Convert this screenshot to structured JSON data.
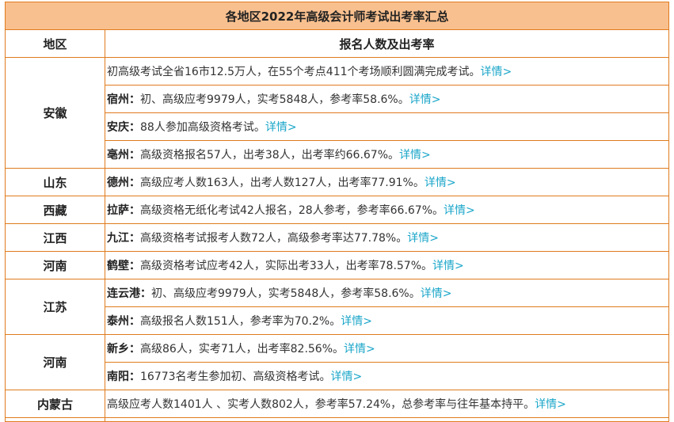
{
  "table": {
    "title": "各地区2022年高级会计师考试出考率汇总",
    "headers": {
      "region": "地区",
      "info": "报名人数及出考率"
    },
    "link_label": "详情>",
    "colors": {
      "border": "#e07b1e",
      "title_bg": "#f9c08f",
      "link": "#1aa6c9"
    },
    "groups": [
      {
        "region": "安徽",
        "rows": [
          {
            "city": "",
            "text": "初高级考试全省16市12.5万人，在55个考点411个考场顺利圆满完成考试。",
            "link": "详情>"
          },
          {
            "city": "宿州：",
            "text": "初、高级应考9979人，实考5848人，参考率58.6%。",
            "link": "详情>"
          },
          {
            "city": "安庆：",
            "text": "88人参加高级资格考试。",
            "link": "详情>"
          },
          {
            "city": "亳州：",
            "text": "高级资格报名57人，出考38人，出考率约66.67%。",
            "link": "详情>"
          }
        ]
      },
      {
        "region": "山东",
        "rows": [
          {
            "city": "德州：",
            "text": "高级应考人数163人，出考人数127人，出考率77.91%。",
            "link": "详情>"
          }
        ]
      },
      {
        "region": "西藏",
        "rows": [
          {
            "city": "拉萨：",
            "text": "高级资格无纸化考试42人报名，28人参考，参考率66.67%。",
            "link": "详情>"
          }
        ]
      },
      {
        "region": "江西",
        "rows": [
          {
            "city": "九江：",
            "text": "高级资格考试报考人数72人，高级参考率达77.78%。",
            "link": "详情>"
          }
        ]
      },
      {
        "region": "河南",
        "rows": [
          {
            "city": "鹤壁：",
            "text": "高级资格考试应考42人，实际出考33人，出考率78.57%。",
            "link": "详情>"
          }
        ]
      },
      {
        "region": "江苏",
        "rows": [
          {
            "city": "连云港：",
            "text": "初、高级应考9979人，实考5848人，参考率58.6%。",
            "link": "详情>"
          },
          {
            "city": "泰州：",
            "text": "高级报名人数151人，参考率为70.2%。",
            "link": "详情>"
          }
        ]
      },
      {
        "region": "河南",
        "rows": [
          {
            "city": "新乡：",
            "text": "高级86人，实考71人，出考率82.56%。",
            "link": "详情>"
          },
          {
            "city": "南阳：",
            "text": "16773名考生参加初、高级资格考试。",
            "link": "详情>"
          }
        ]
      },
      {
        "region": "内蒙古",
        "rows": [
          {
            "city": "",
            "text": "高级应考人数1401人 、实考人数802人，参考率57.24%，总参考率与往年基本持平。",
            "link": "详情>"
          }
        ]
      }
    ]
  }
}
